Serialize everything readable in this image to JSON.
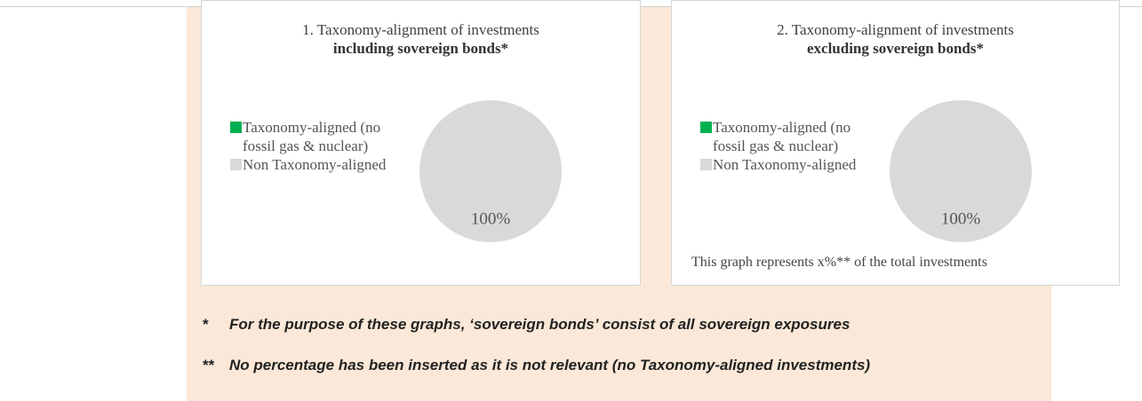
{
  "chart_data": [
    {
      "type": "pie",
      "title": "1. Taxonomy-alignment of investments",
      "subtitle": "including sovereign bonds*",
      "categories": [
        "Taxonomy-aligned (no fossil gas & nuclear)",
        "Non Taxonomy-aligned"
      ],
      "values": [
        0,
        100
      ],
      "value_labels": [
        null,
        "100%"
      ],
      "colors": [
        "#00b050",
        "#d9d9d9"
      ]
    },
    {
      "type": "pie",
      "title": "2. Taxonomy-alignment of investments",
      "subtitle": "excluding sovereign bonds*",
      "categories": [
        "Taxonomy-aligned (no fossil gas & nuclear)",
        "Non Taxonomy-aligned"
      ],
      "values": [
        0,
        100
      ],
      "value_labels": [
        null,
        "100%"
      ],
      "colors": [
        "#00b050",
        "#d9d9d9"
      ],
      "note": "This graph represents x%** of the total investments"
    }
  ],
  "footnotes": [
    {
      "mark": "*",
      "text": "For the purpose of these graphs, ‘sovereign bonds’ consist of  all sovereign exposures"
    },
    {
      "mark": "**",
      "text": "No percentage has been inserted as it is not relevant (no Taxonomy-aligned investments)"
    }
  ]
}
